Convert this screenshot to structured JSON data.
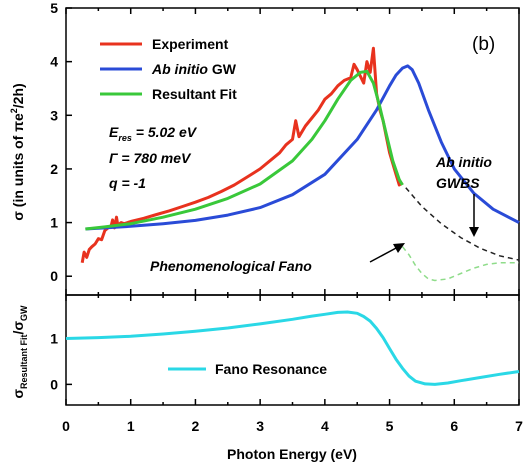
{
  "chart_data": [
    {
      "type": "line",
      "panel_label": "(b)",
      "ylabel_parts": [
        "σ (in units of πe",
        "2",
        "/2h)"
      ],
      "xlim": [
        0,
        7
      ],
      "ylim": [
        -0.35,
        5
      ],
      "yticks": [
        "0",
        "1",
        "2",
        "3",
        "4",
        "5"
      ],
      "legend_position": "top-left",
      "legend": [
        {
          "label": "Experiment",
          "italic_prefix": ""
        },
        {
          "label": "GW",
          "italic_prefix": "Ab initio"
        },
        {
          "label": "Resultant Fit",
          "italic_prefix": ""
        }
      ],
      "series": [
        {
          "name": "Experiment",
          "color": "#e8321e",
          "x": [
            0.25,
            0.28,
            0.32,
            0.36,
            0.4,
            0.45,
            0.5,
            0.55,
            0.6,
            0.65,
            0.7,
            0.72,
            0.75,
            0.78,
            0.8,
            0.85,
            0.9,
            1.0,
            1.2,
            1.4,
            1.6,
            1.8,
            2.0,
            2.2,
            2.4,
            2.6,
            2.8,
            3.0,
            3.2,
            3.3,
            3.4,
            3.5,
            3.55,
            3.6,
            3.7,
            3.8,
            3.9,
            4.0,
            4.1,
            4.2,
            4.3,
            4.4,
            4.45,
            4.5,
            4.6,
            4.65,
            4.7,
            4.75,
            4.8,
            4.85,
            4.9,
            4.95,
            5.0,
            5.05,
            5.1,
            5.15,
            5.2
          ],
          "y": [
            0.25,
            0.45,
            0.35,
            0.5,
            0.55,
            0.6,
            0.7,
            0.68,
            0.85,
            0.9,
            0.95,
            1.05,
            0.9,
            1.1,
            0.95,
            1.0,
            0.98,
            1.02,
            1.08,
            1.15,
            1.22,
            1.3,
            1.38,
            1.47,
            1.58,
            1.7,
            1.85,
            2.0,
            2.2,
            2.3,
            2.45,
            2.55,
            2.9,
            2.6,
            2.8,
            2.95,
            3.1,
            3.3,
            3.4,
            3.55,
            3.65,
            3.7,
            3.95,
            3.85,
            3.6,
            4.0,
            3.8,
            4.25,
            3.4,
            3.1,
            2.9,
            2.6,
            2.3,
            2.1,
            1.9,
            1.7,
            1.75
          ]
        },
        {
          "name": "Ab initio GW",
          "color": "#2a4bd7",
          "x": [
            0.3,
            0.6,
            1.0,
            1.5,
            2.0,
            2.5,
            3.0,
            3.5,
            4.0,
            4.5,
            4.8,
            5.0,
            5.1,
            5.2,
            5.28,
            5.35,
            5.45,
            5.6,
            5.8,
            6.0,
            6.3,
            6.6,
            7.0
          ],
          "y": [
            0.88,
            0.9,
            0.93,
            0.98,
            1.04,
            1.14,
            1.28,
            1.52,
            1.9,
            2.55,
            3.1,
            3.55,
            3.75,
            3.88,
            3.92,
            3.85,
            3.6,
            3.1,
            2.5,
            2.0,
            1.55,
            1.25,
            1.0
          ]
        },
        {
          "name": "Resultant Fit",
          "color": "#39c83a",
          "x": [
            0.3,
            0.6,
            1.0,
            1.5,
            2.0,
            2.5,
            3.0,
            3.5,
            3.8,
            4.0,
            4.2,
            4.4,
            4.55,
            4.65,
            4.75,
            4.85,
            4.95,
            5.05,
            5.15,
            5.2
          ],
          "y": [
            0.88,
            0.92,
            0.98,
            1.1,
            1.25,
            1.45,
            1.72,
            2.15,
            2.55,
            2.9,
            3.3,
            3.65,
            3.8,
            3.82,
            3.6,
            3.15,
            2.65,
            2.15,
            1.8,
            1.7
          ]
        },
        {
          "name": "Ab initio GWBS",
          "color": "#222222",
          "dashed": true,
          "x": [
            5.25,
            5.5,
            5.8,
            6.1,
            6.4,
            6.7,
            7.0
          ],
          "y": [
            1.65,
            1.3,
            0.98,
            0.72,
            0.52,
            0.38,
            0.3
          ]
        },
        {
          "name": "Phenomenological Fano",
          "color": "#8fdc8a",
          "dashed": true,
          "x": [
            5.2,
            5.3,
            5.4,
            5.5,
            5.6,
            5.7,
            5.9,
            6.1,
            6.3,
            6.5,
            6.7,
            7.0
          ],
          "y": [
            0.55,
            0.4,
            0.2,
            0.05,
            -0.05,
            -0.08,
            -0.05,
            0.05,
            0.15,
            0.22,
            0.25,
            0.25
          ]
        }
      ],
      "annotations": {
        "params": [
          {
            "symbol": "E",
            "sub": "res",
            "value": " = 5.02 eV"
          },
          {
            "symbol": "Γ",
            "sub": "",
            "value": " = 780 meV"
          },
          {
            "symbol": "q",
            "sub": "",
            "value": " = -1"
          }
        ],
        "gwbs": [
          "Ab initio",
          "GWBS"
        ],
        "fano_label": "Phenomenological Fano"
      }
    },
    {
      "type": "line",
      "xlabel": "Photon Energy (eV)",
      "ylabel_parts": [
        "σ",
        "Resultant Fit",
        "/σ",
        "GW"
      ],
      "xlim": [
        0,
        7
      ],
      "ylim": [
        -0.45,
        1.95
      ],
      "xticks": [
        "0",
        "1",
        "2",
        "3",
        "4",
        "5",
        "6",
        "7"
      ],
      "yticks": [
        "0",
        "1"
      ],
      "legend_position": "bottom-center",
      "series": [
        {
          "name": "Fano Resonance",
          "color": "#2ad8e6",
          "x": [
            0.0,
            0.5,
            1.0,
            1.5,
            2.0,
            2.5,
            3.0,
            3.5,
            3.8,
            4.0,
            4.2,
            4.35,
            4.5,
            4.6,
            4.7,
            4.8,
            4.9,
            5.0,
            5.1,
            5.2,
            5.3,
            5.4,
            5.55,
            5.7,
            5.9,
            6.1,
            6.4,
            6.7,
            7.0
          ],
          "y": [
            1.0,
            1.02,
            1.05,
            1.1,
            1.16,
            1.23,
            1.32,
            1.42,
            1.49,
            1.53,
            1.57,
            1.58,
            1.55,
            1.48,
            1.38,
            1.22,
            1.02,
            0.78,
            0.55,
            0.35,
            0.18,
            0.07,
            0.01,
            0.0,
            0.03,
            0.08,
            0.15,
            0.22,
            0.28
          ]
        }
      ]
    }
  ]
}
